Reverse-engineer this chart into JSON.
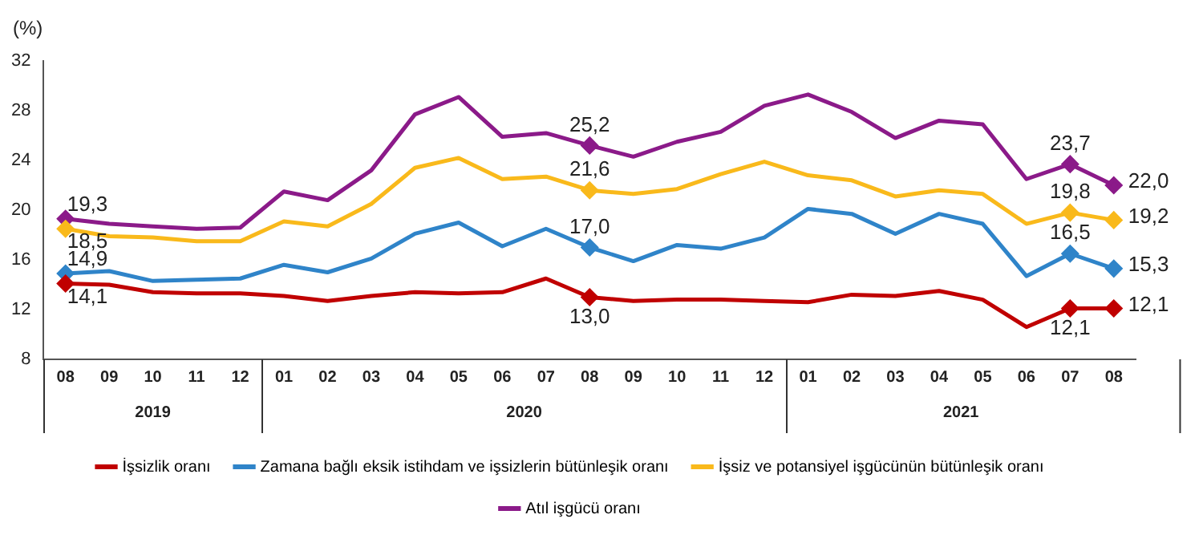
{
  "chart_data": {
    "type": "line",
    "ylabel": "(%)",
    "categories": [
      "08",
      "09",
      "10",
      "11",
      "12",
      "01",
      "02",
      "03",
      "04",
      "05",
      "06",
      "07",
      "08",
      "09",
      "10",
      "11",
      "12",
      "01",
      "02",
      "03",
      "04",
      "05",
      "06",
      "07",
      "08"
    ],
    "annotations": [
      "2019",
      "2020",
      "2021"
    ],
    "ylim": [
      8,
      32
    ],
    "yticks": [
      8,
      12,
      16,
      20,
      24,
      28,
      32
    ],
    "grid": false,
    "legend": "bottom",
    "line_style": "solid",
    "series": [
      {
        "name": "İşsizlik oranı",
        "color": "#c00000",
        "values": [
          14.1,
          14.0,
          13.4,
          13.3,
          13.3,
          13.1,
          12.7,
          13.1,
          13.4,
          13.3,
          13.4,
          14.5,
          13.0,
          12.7,
          12.8,
          12.8,
          12.7,
          12.6,
          13.2,
          13.1,
          13.5,
          12.8,
          10.6,
          12.1,
          12.1
        ],
        "value_labels": [
          "14,1",
          null,
          null,
          null,
          null,
          null,
          null,
          null,
          null,
          null,
          null,
          null,
          "13,0",
          null,
          null,
          null,
          null,
          null,
          null,
          null,
          null,
          null,
          null,
          "12,1",
          "12,1"
        ]
      },
      {
        "name": "Zamana bağlı eksik istihdam ve işsizlerin bütünleşik oranı",
        "color": "#2f84c9",
        "values": [
          14.9,
          15.1,
          14.3,
          14.4,
          14.5,
          15.6,
          15.0,
          16.1,
          18.1,
          19.0,
          17.1,
          18.5,
          17.0,
          15.9,
          17.2,
          16.9,
          17.8,
          20.1,
          19.7,
          18.1,
          19.7,
          18.9,
          14.7,
          16.5,
          15.3
        ],
        "value_labels": [
          "14,9",
          null,
          null,
          null,
          null,
          null,
          null,
          null,
          null,
          null,
          null,
          null,
          "17,0",
          null,
          null,
          null,
          null,
          null,
          null,
          null,
          null,
          null,
          null,
          "16,5",
          "15,3"
        ]
      },
      {
        "name": "İşsiz ve potansiyel işgücünün bütünleşik oranı",
        "color": "#f9b91b",
        "values": [
          18.5,
          17.9,
          17.8,
          17.5,
          17.5,
          19.1,
          18.7,
          20.5,
          23.4,
          24.2,
          22.5,
          22.7,
          21.6,
          21.3,
          21.7,
          22.9,
          23.9,
          22.8,
          22.4,
          21.1,
          21.6,
          21.3,
          18.9,
          19.8,
          19.2
        ],
        "value_labels": [
          "18,5",
          null,
          null,
          null,
          null,
          null,
          null,
          null,
          null,
          null,
          null,
          null,
          "21,6",
          null,
          null,
          null,
          null,
          null,
          null,
          null,
          null,
          null,
          null,
          "19,8",
          "19,2"
        ]
      },
      {
        "name": "Atıl işgücü oranı",
        "color": "#8b1a89",
        "values": [
          19.3,
          18.9,
          18.7,
          18.5,
          18.6,
          21.5,
          20.8,
          23.2,
          27.7,
          29.1,
          25.9,
          26.2,
          25.2,
          24.3,
          25.5,
          26.3,
          28.4,
          29.3,
          27.9,
          25.8,
          27.2,
          26.9,
          22.5,
          23.7,
          22.0
        ],
        "value_labels": [
          "19,3",
          null,
          null,
          null,
          null,
          null,
          null,
          null,
          null,
          null,
          null,
          null,
          "25,2",
          null,
          null,
          null,
          null,
          null,
          null,
          null,
          null,
          null,
          null,
          "23,7",
          "22,0"
        ]
      }
    ]
  }
}
